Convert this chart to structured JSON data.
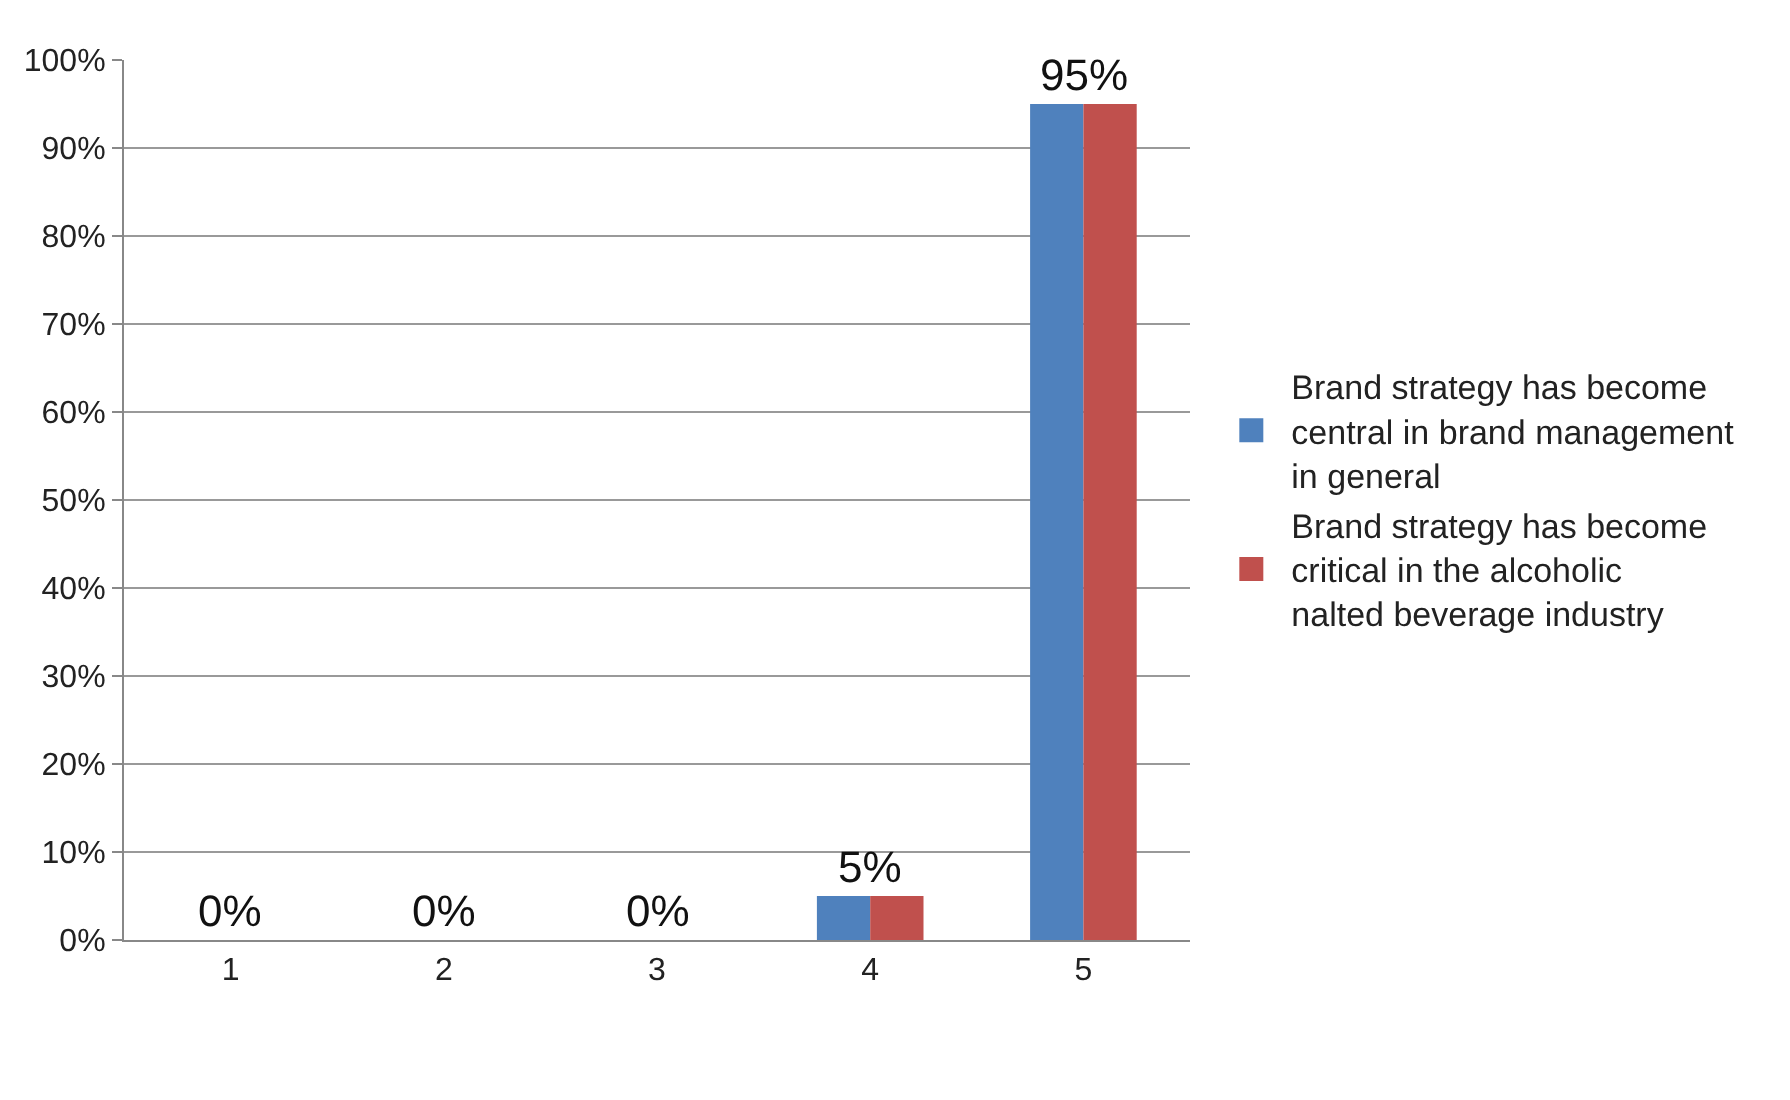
{
  "chart_data": {
    "type": "bar",
    "categories": [
      "1",
      "2",
      "3",
      "4",
      "5"
    ],
    "series": [
      {
        "name": "Brand strategy has become central in brand management in general",
        "color": "#4f81bd",
        "values": [
          0,
          0,
          0,
          5,
          95
        ]
      },
      {
        "name": "Brand strategy has become critical in the alcoholic nalted beverage industry",
        "color": "#c0504d",
        "values": [
          0,
          0,
          0,
          5,
          95
        ]
      }
    ],
    "ylim": [
      0,
      100
    ],
    "yticks": [
      {
        "value": 0,
        "label": "0%"
      },
      {
        "value": 10,
        "label": "10%"
      },
      {
        "value": 20,
        "label": "20%"
      },
      {
        "value": 30,
        "label": "30%"
      },
      {
        "value": 40,
        "label": "40%"
      },
      {
        "value": 50,
        "label": "50%"
      },
      {
        "value": 60,
        "label": "60%"
      },
      {
        "value": 70,
        "label": "70%"
      },
      {
        "value": 80,
        "label": "80%"
      },
      {
        "value": 90,
        "label": "90%"
      },
      {
        "value": 100,
        "label": "100%"
      }
    ],
    "annotations": [
      {
        "text": "0%",
        "x": "1",
        "y": 0
      },
      {
        "text": "0%",
        "x": "2",
        "y": 0
      },
      {
        "text": "0%",
        "x": "3",
        "y": 0
      },
      {
        "text": "5%",
        "x": "4",
        "y": 5
      },
      {
        "text": "95%",
        "x": "5",
        "y": 95
      }
    ],
    "grid": "y",
    "legend": "right"
  }
}
